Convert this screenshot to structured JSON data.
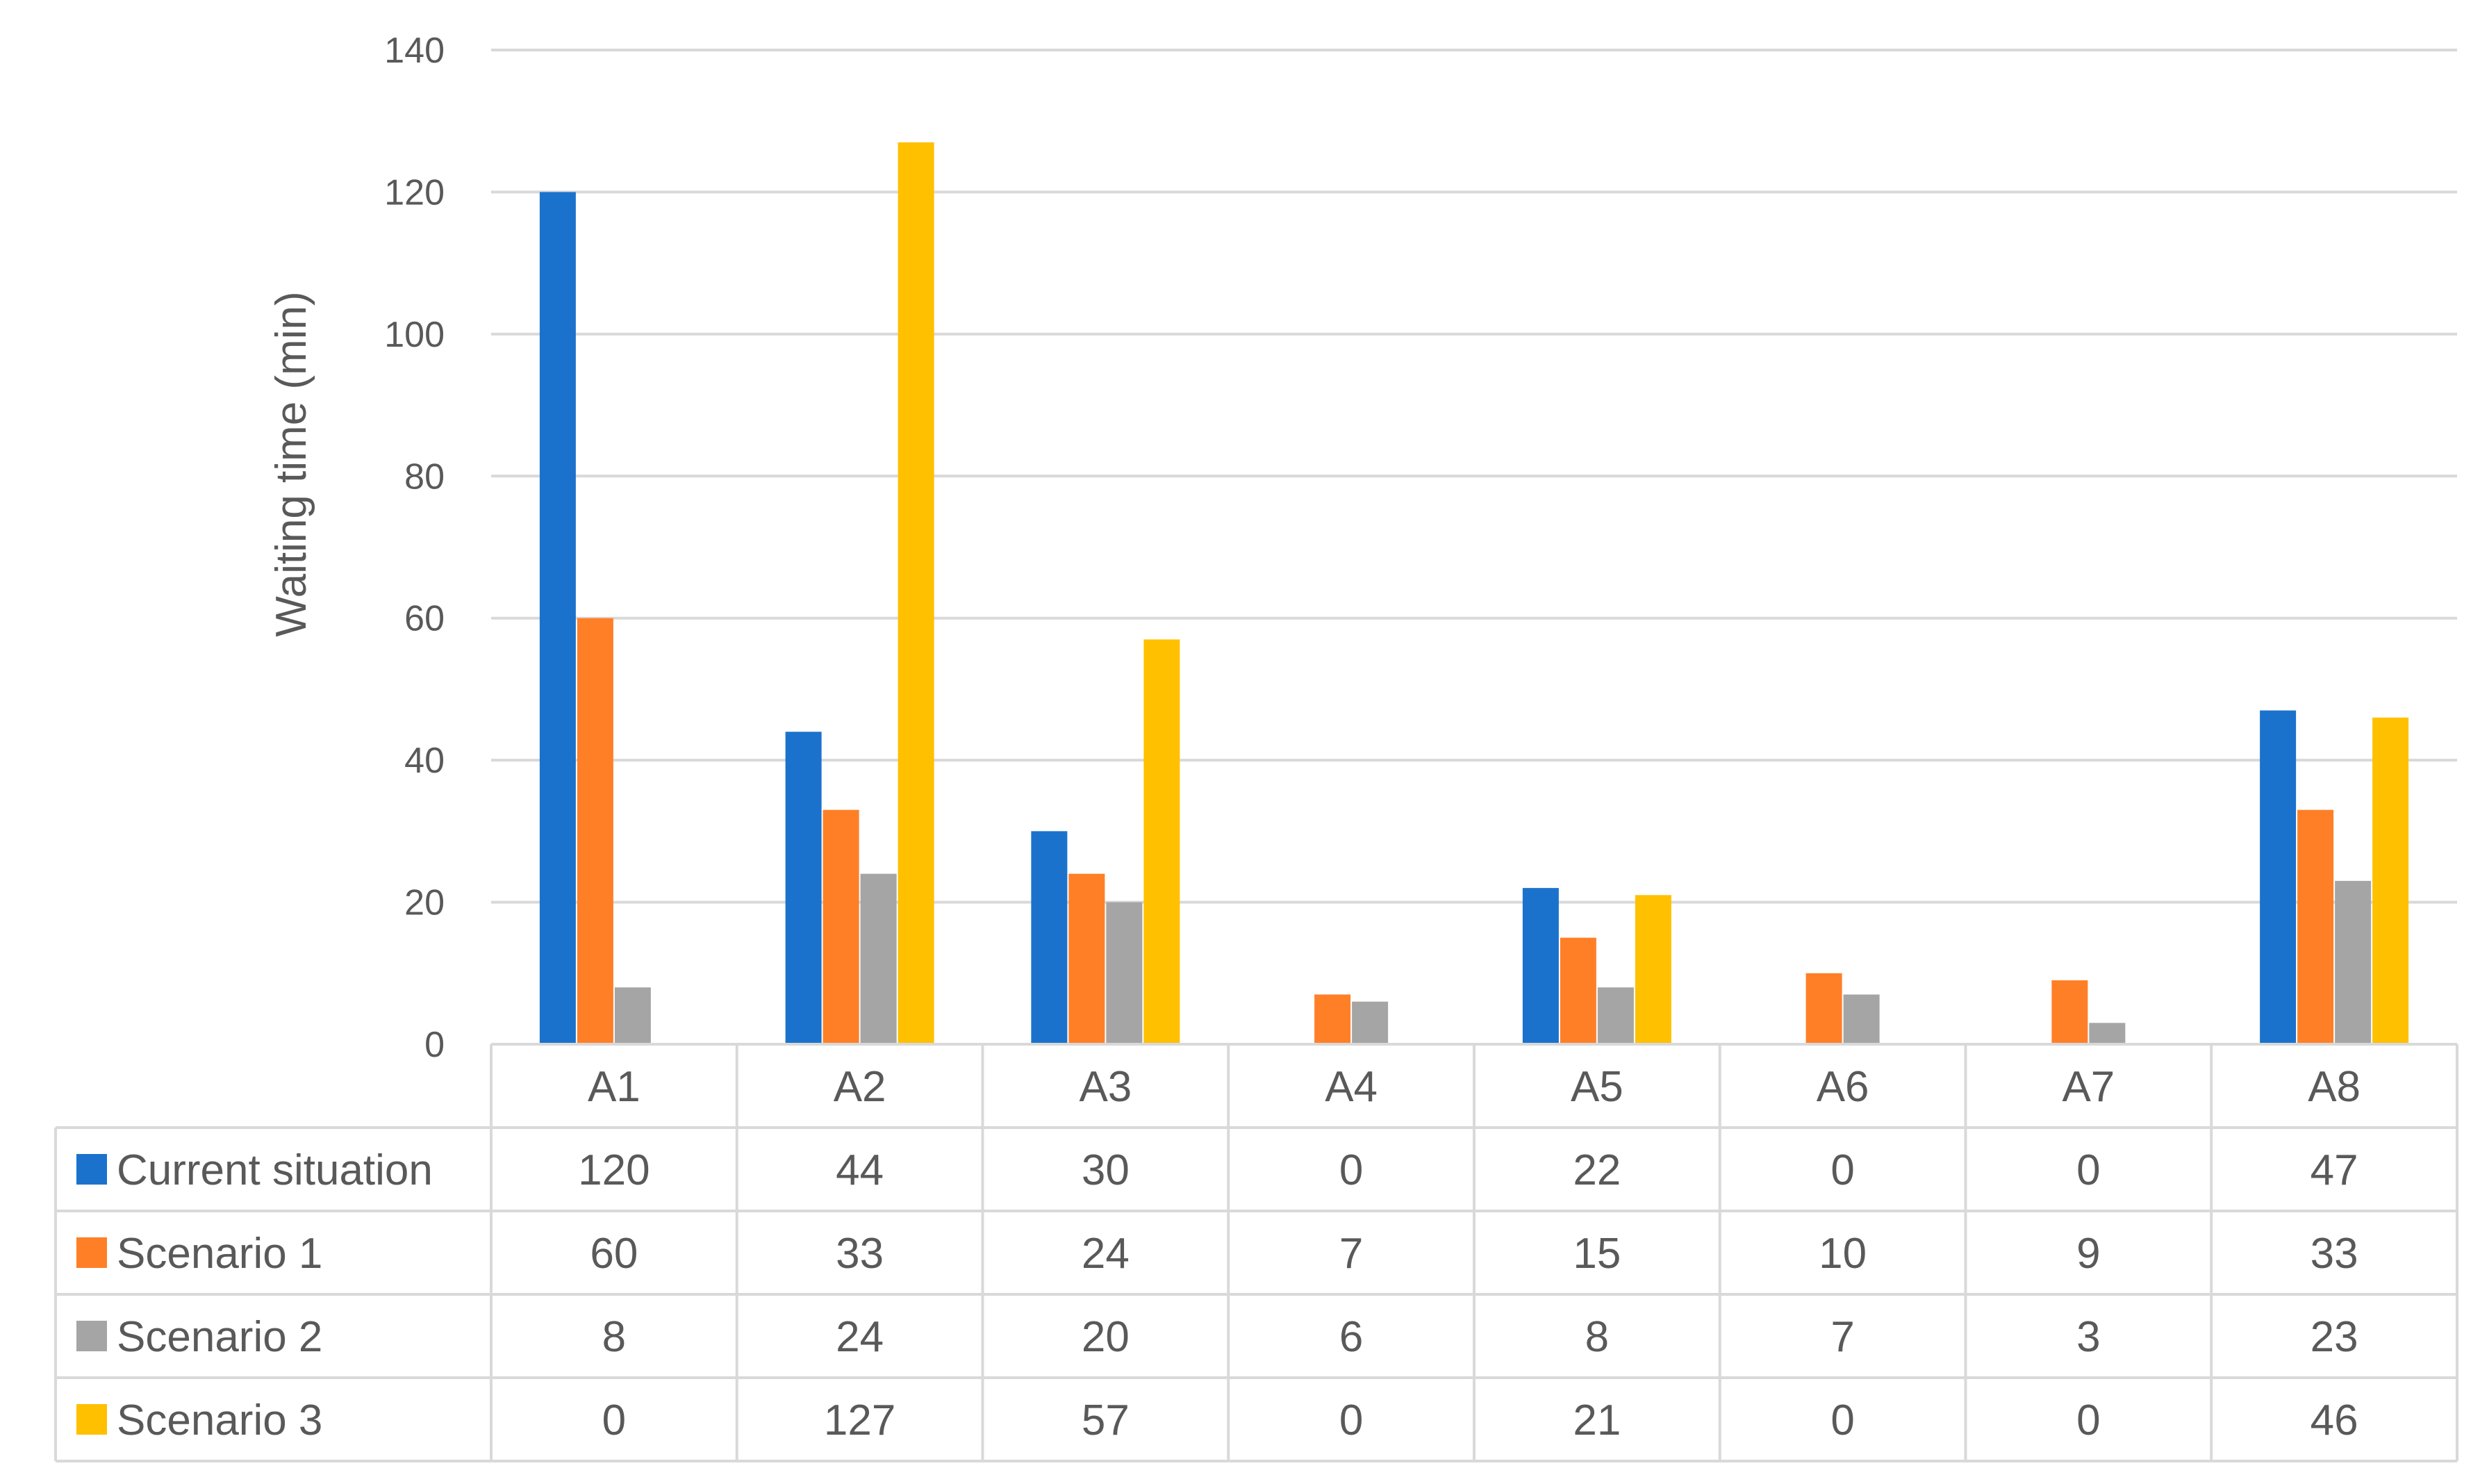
{
  "chart_data": {
    "type": "bar",
    "title": "",
    "xlabel": "",
    "ylabel": "Waiting time (min)",
    "ylim": [
      0,
      140
    ],
    "yticks": [
      0,
      20,
      40,
      60,
      80,
      100,
      120,
      140
    ],
    "grid": true,
    "legend": "data-table",
    "categories": [
      "A1",
      "A2",
      "A3",
      "A4",
      "A5",
      "A6",
      "A7",
      "A8"
    ],
    "series": [
      {
        "name": "Current situation",
        "color": "#1B72CC",
        "values": [
          120,
          44,
          30,
          0,
          22,
          0,
          0,
          47
        ]
      },
      {
        "name": "Scenario 1",
        "color": "#FF7F27",
        "values": [
          60,
          33,
          24,
          7,
          15,
          10,
          9,
          33
        ]
      },
      {
        "name": "Scenario 2",
        "color": "#A5A5A5",
        "values": [
          8,
          24,
          20,
          6,
          8,
          7,
          3,
          23
        ]
      },
      {
        "name": "Scenario 3",
        "color": "#FFC000",
        "values": [
          0,
          127,
          57,
          0,
          21,
          0,
          0,
          46
        ]
      }
    ]
  }
}
